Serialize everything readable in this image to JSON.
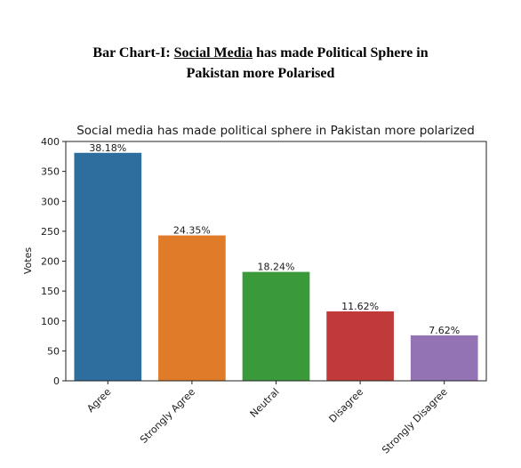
{
  "document": {
    "caption_prefix": "Bar Chart-I: ",
    "caption_underlined": "Social Media",
    "caption_rest_line1": " has made Political Sphere in",
    "caption_line2": "Pakistan more Polarised"
  },
  "chart_data": {
    "type": "bar",
    "title": "Social media has made political sphere in Pakistan more polarized",
    "xlabel": "",
    "ylabel": "Votes",
    "ylim": [
      0,
      400
    ],
    "yticks": [
      0,
      50,
      100,
      150,
      200,
      250,
      300,
      350,
      400
    ],
    "categories": [
      "Agree",
      "Strongly Agree",
      "Neutral",
      "Disagree",
      "Strongly Disagree"
    ],
    "values": [
      381,
      243,
      182,
      116,
      76
    ],
    "data_labels": [
      "38.18%",
      "24.35%",
      "18.24%",
      "11.62%",
      "7.62%"
    ],
    "colors": [
      "#2e6e9e",
      "#e07b2a",
      "#3a9a3a",
      "#c03a3a",
      "#9473b5"
    ],
    "grid": false,
    "legend": "none"
  }
}
